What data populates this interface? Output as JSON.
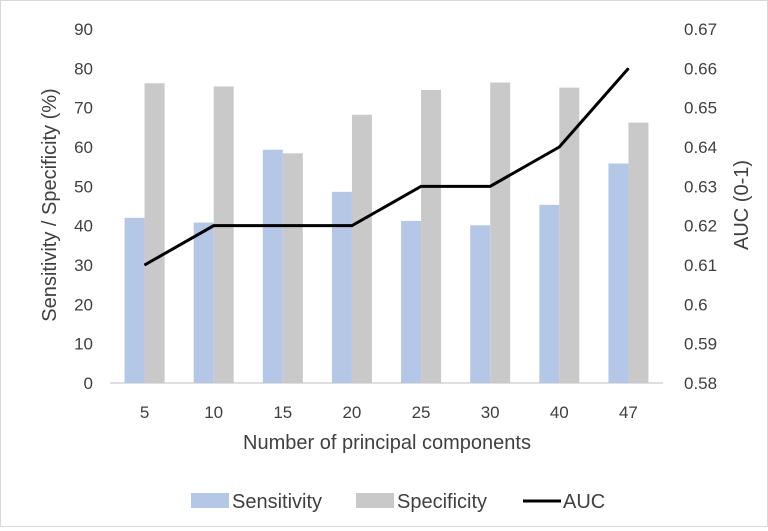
{
  "chart_data": {
    "type": "bar",
    "categories": [
      "5",
      "10",
      "15",
      "20",
      "25",
      "30",
      "40",
      "47"
    ],
    "series": [
      {
        "name": "Sensitivity",
        "kind": "bar",
        "axis": "left",
        "color": "#b4c7e7",
        "values": [
          42,
          40.8,
          59.3,
          48.6,
          41.2,
          40.1,
          45.3,
          55.8
        ]
      },
      {
        "name": "Specificity",
        "kind": "bar",
        "axis": "left",
        "color": "#c9c9c9",
        "values": [
          76.2,
          75.4,
          58.4,
          68.2,
          74.5,
          76.4,
          75.1,
          66.2
        ]
      },
      {
        "name": "AUC",
        "kind": "line",
        "axis": "right",
        "color": "#000000",
        "values": [
          0.61,
          0.62,
          0.62,
          0.62,
          0.63,
          0.63,
          0.64,
          0.66
        ]
      }
    ],
    "xlabel": "Number of principal components",
    "ylabel": "Sensitivity / Specificity (%)",
    "y2label": "AUC (0-1)",
    "ylim": [
      0,
      90
    ],
    "yticks": [
      "0",
      "10",
      "20",
      "30",
      "40",
      "50",
      "60",
      "70",
      "80",
      "90"
    ],
    "y2lim": [
      0.58,
      0.67
    ],
    "y2ticks": [
      "0.58",
      "0.59",
      "0.6",
      "0.61",
      "0.62",
      "0.63",
      "0.64",
      "0.65",
      "0.66",
      "0.67"
    ],
    "legend": {
      "position": "bottom",
      "items": [
        "Sensitivity",
        "Specificity",
        "AUC"
      ]
    },
    "grid": false
  }
}
